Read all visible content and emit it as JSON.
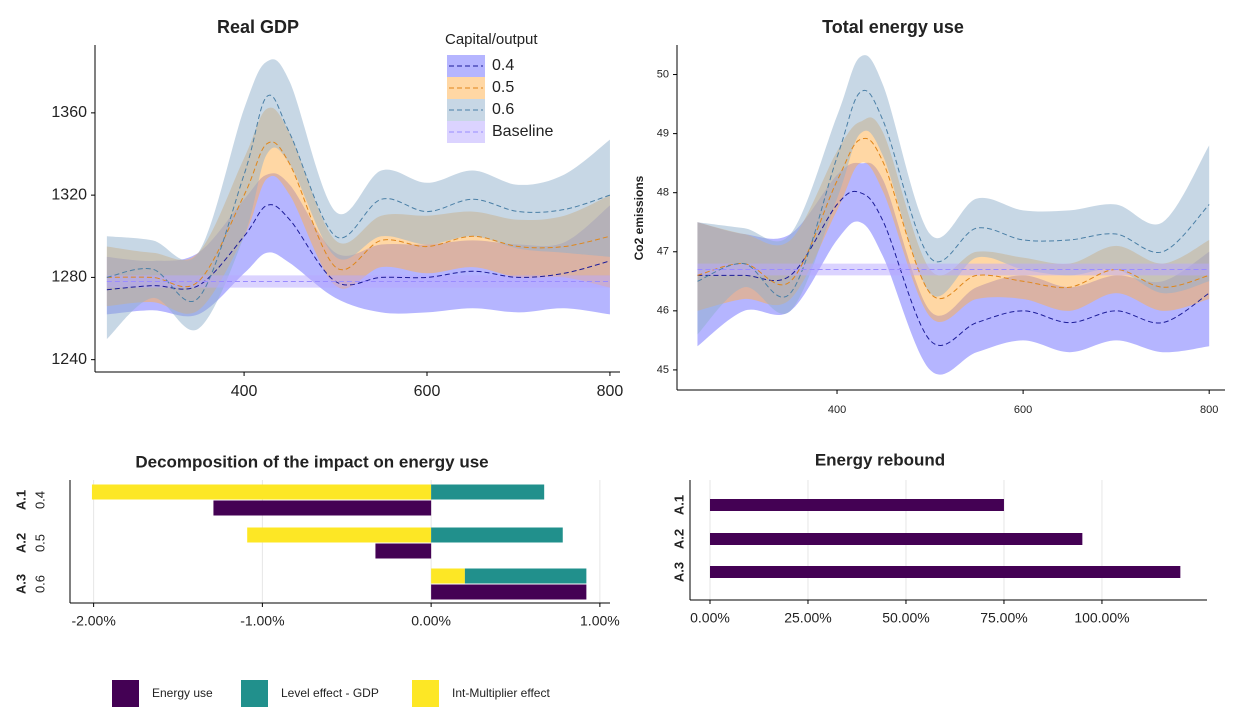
{
  "chart_data": [
    {
      "type": "line",
      "title": "Real GDP",
      "legend_title": "Capital/output",
      "x": [
        250,
        300,
        350,
        400,
        425,
        450,
        500,
        550,
        600,
        650,
        700,
        750,
        800
      ],
      "xlim": [
        237,
        811
      ],
      "xticks": [
        400,
        600,
        800
      ],
      "ylim": [
        1234,
        1393
      ],
      "yticks": [
        1240,
        1280,
        1320,
        1360
      ],
      "series": [
        {
          "name": "0.4",
          "color": "#6b6bff",
          "line_color": "#1c1c99",
          "values": [
            1274,
            1276,
            1276,
            1300,
            1315,
            1308,
            1278,
            1280,
            1280,
            1283,
            1280,
            1282,
            1288
          ],
          "lower": [
            1262,
            1264,
            1262,
            1282,
            1292,
            1287,
            1270,
            1263,
            1263,
            1265,
            1263,
            1265,
            1262
          ],
          "upper": [
            1290,
            1288,
            1292,
            1318,
            1330,
            1325,
            1292,
            1296,
            1296,
            1298,
            1296,
            1297,
            1315
          ]
        },
        {
          "name": "0.5",
          "color": "#ffb04a",
          "line_color": "#e0861a",
          "values": [
            1280,
            1280,
            1278,
            1320,
            1345,
            1335,
            1285,
            1298,
            1295,
            1300,
            1295,
            1295,
            1300
          ],
          "lower": [
            1266,
            1268,
            1264,
            1300,
            1328,
            1320,
            1276,
            1285,
            1282,
            1285,
            1280,
            1280,
            1275
          ],
          "upper": [
            1295,
            1292,
            1292,
            1338,
            1362,
            1350,
            1298,
            1310,
            1310,
            1312,
            1308,
            1310,
            1320
          ]
        },
        {
          "name": "0.6",
          "color": "#8fb0cc",
          "line_color": "#4a7fa6",
          "values": [
            1280,
            1284,
            1270,
            1330,
            1368,
            1350,
            1300,
            1318,
            1312,
            1318,
            1312,
            1313,
            1320
          ],
          "lower": [
            1250,
            1270,
            1255,
            1300,
            1340,
            1335,
            1290,
            1300,
            1296,
            1300,
            1294,
            1292,
            1290
          ],
          "upper": [
            1300,
            1298,
            1292,
            1362,
            1385,
            1375,
            1312,
            1332,
            1326,
            1332,
            1325,
            1330,
            1347
          ]
        },
        {
          "name": "Baseline",
          "color": "#b8a8ff",
          "line_color": "#9a8cff",
          "values": [
            1278,
            1278,
            1278,
            1278,
            1278,
            1278,
            1278,
            1278,
            1278,
            1278,
            1278,
            1278,
            1278
          ],
          "lower": [
            1275,
            1275,
            1275,
            1275,
            1275,
            1275,
            1275,
            1275,
            1275,
            1275,
            1275,
            1275,
            1275
          ],
          "upper": [
            1281,
            1281,
            1281,
            1281,
            1281,
            1281,
            1281,
            1281,
            1281,
            1281,
            1281,
            1281,
            1281
          ]
        }
      ]
    },
    {
      "type": "line",
      "title": "Total energy use",
      "y_label": "Co2 emissions",
      "x": [
        250,
        300,
        350,
        400,
        425,
        450,
        500,
        550,
        600,
        650,
        700,
        750,
        800
      ],
      "xlim": [
        228,
        817
      ],
      "xticks": [
        400,
        600,
        800
      ],
      "ylim": [
        44.66,
        50.5
      ],
      "yticks": [
        45,
        46,
        47,
        48,
        49,
        50
      ],
      "series": [
        {
          "name": "0.4",
          "color": "#6b6bff",
          "line_color": "#1c1c99",
          "values": [
            46.6,
            46.6,
            46.6,
            47.8,
            48.0,
            47.5,
            45.5,
            45.8,
            46.0,
            45.8,
            46.0,
            45.8,
            46.3
          ],
          "lower": [
            45.4,
            46.0,
            46.0,
            47.2,
            47.5,
            46.9,
            45.0,
            45.3,
            45.5,
            45.3,
            45.5,
            45.3,
            45.4
          ],
          "upper": [
            47.5,
            47.3,
            47.3,
            48.3,
            48.5,
            48.2,
            46.0,
            46.4,
            46.6,
            46.4,
            46.6,
            46.5,
            47.0
          ]
        },
        {
          "name": "0.5",
          "color": "#ffb04a",
          "line_color": "#e0861a",
          "values": [
            46.6,
            46.8,
            46.5,
            48.2,
            48.9,
            48.5,
            46.3,
            46.6,
            46.5,
            46.4,
            46.7,
            46.4,
            46.6
          ],
          "lower": [
            46.0,
            46.2,
            46.2,
            47.7,
            48.5,
            48.0,
            45.9,
            46.2,
            46.2,
            46.0,
            46.3,
            46.0,
            46.2
          ],
          "upper": [
            47.5,
            47.3,
            47.2,
            48.7,
            49.2,
            49.0,
            46.7,
            47.0,
            46.9,
            46.8,
            47.1,
            46.8,
            47.2
          ]
        },
        {
          "name": "0.6",
          "color": "#8fb0cc",
          "line_color": "#4a7fa6",
          "values": [
            46.5,
            46.8,
            46.3,
            48.6,
            49.7,
            49.2,
            46.9,
            47.4,
            47.2,
            47.2,
            47.3,
            47.0,
            47.8
          ],
          "lower": [
            45.6,
            46.4,
            46.0,
            47.9,
            49.0,
            48.6,
            46.3,
            46.9,
            46.7,
            46.6,
            46.7,
            46.3,
            46.5
          ],
          "upper": [
            47.5,
            47.4,
            47.3,
            49.3,
            50.3,
            49.8,
            47.3,
            47.9,
            47.7,
            47.7,
            47.8,
            47.5,
            48.8
          ]
        },
        {
          "name": "Baseline",
          "color": "#b8a8ff",
          "line_color": "#9a8cff",
          "values": [
            46.7,
            46.7,
            46.7,
            46.7,
            46.7,
            46.7,
            46.7,
            46.7,
            46.7,
            46.7,
            46.7,
            46.7,
            46.7
          ],
          "lower": [
            46.6,
            46.6,
            46.6,
            46.6,
            46.6,
            46.6,
            46.6,
            46.6,
            46.6,
            46.6,
            46.6,
            46.6,
            46.6
          ],
          "upper": [
            46.8,
            46.8,
            46.8,
            46.8,
            46.8,
            46.8,
            46.8,
            46.8,
            46.8,
            46.8,
            46.8,
            46.8,
            46.8
          ]
        }
      ]
    },
    {
      "type": "bar",
      "orientation": "horizontal",
      "title": "Decomposition of the impact on energy use",
      "categories": [
        "A.1",
        "A.2",
        "A.3"
      ],
      "subcategories": [
        "0.4",
        "0.5",
        "0.6"
      ],
      "xlim": [
        -2.14,
        1.06
      ],
      "grid": true,
      "xticks": [
        {
          "value": -2,
          "label": "-2.00%"
        },
        {
          "value": -1,
          "label": "-1.00%"
        },
        {
          "value": 0,
          "label": "0.00%"
        },
        {
          "value": 1,
          "label": "1.00%"
        }
      ],
      "series": [
        {
          "name": "Energy use",
          "color": "#440154",
          "values": [
            -1.29,
            -0.33,
            0.92
          ]
        },
        {
          "name": "Level effect - GDP",
          "color": "#21908c",
          "values": [
            0.67,
            0.78,
            0.72
          ]
        },
        {
          "name": "Int-Multiplier effect",
          "color": "#fde725",
          "values": [
            -2.01,
            -1.09,
            0.2
          ]
        }
      ]
    },
    {
      "type": "bar",
      "orientation": "horizontal",
      "title": "Energy rebound",
      "categories": [
        "A.1",
        "A.2",
        "A.3"
      ],
      "xlim": [
        -5.1,
        126.8
      ],
      "grid": true,
      "xticks": [
        {
          "value": 0,
          "label": "0.00%"
        },
        {
          "value": 25,
          "label": "25.00%"
        },
        {
          "value": 50,
          "label": "50.00%"
        },
        {
          "value": 75,
          "label": "75.00%"
        },
        {
          "value": 100,
          "label": "100.00%"
        }
      ],
      "series": [
        {
          "color": "#440154",
          "values": [
            75,
            95,
            120
          ]
        }
      ]
    }
  ]
}
